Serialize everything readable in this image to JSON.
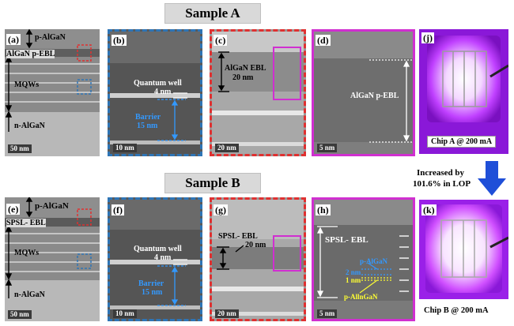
{
  "figure": {
    "sample_a": {
      "title": "Sample A",
      "panels": {
        "a": {
          "label": "(a)",
          "layers": [
            "p-AlGaN",
            "AlGaN p-EBL",
            "MQWs",
            "n-AlGaN"
          ],
          "scale": "50 nm"
        },
        "b": {
          "label": "(b)",
          "qw": "Quantum well",
          "qw_size": "4 nm",
          "barrier": "Barrier",
          "barrier_size": "15 nm",
          "scale": "10 nm"
        },
        "c": {
          "label": "(c)",
          "ebl": "AlGaN EBL",
          "ebl_size": "20 nm",
          "scale": "20 nm"
        },
        "d": {
          "label": "(d)",
          "ebl": "AlGaN p-EBL",
          "scale": "5 nm"
        },
        "j": {
          "label": "(j)",
          "caption": "Chip A  @ 200 mA"
        }
      }
    },
    "sample_b": {
      "title": "Sample B",
      "panels": {
        "e": {
          "label": "(e)",
          "layers": [
            "p-AlGaN",
            "SPSL- EBL",
            "MQWs",
            "n-AlGaN"
          ],
          "scale": "50 nm"
        },
        "f": {
          "label": "(f)",
          "qw": "Quantum well",
          "qw_size": "4 nm",
          "barrier": "Barrier",
          "barrier_size": "15 nm",
          "scale": "10 nm"
        },
        "g": {
          "label": "(g)",
          "ebl": "SPSL- EBL",
          "ebl_size": "20 nm",
          "scale": "20 nm"
        },
        "h": {
          "label": "(h)",
          "ebl": "SPSL- EBL",
          "p_algan": "p-AlGaN",
          "s1": "2 nm",
          "s2": "1 nm",
          "p_allngan": "p-AllnGaN",
          "scale": "5 nm"
        },
        "k": {
          "label": "(k)",
          "caption": "Chip B  @ 200 mA"
        }
      }
    },
    "increase_note": {
      "line1": "Increased by",
      "line2": "101.6% in LOP"
    },
    "colors": {
      "blue_frame": "#2e75b6",
      "red_frame": "#e03030",
      "magenta_frame": "#d02fd0",
      "arrow_blue": "#1f4fd8",
      "annot_blue": "#3399ff",
      "annot_yellow": "#ffff33",
      "chip_glow": "#c040ff"
    }
  }
}
